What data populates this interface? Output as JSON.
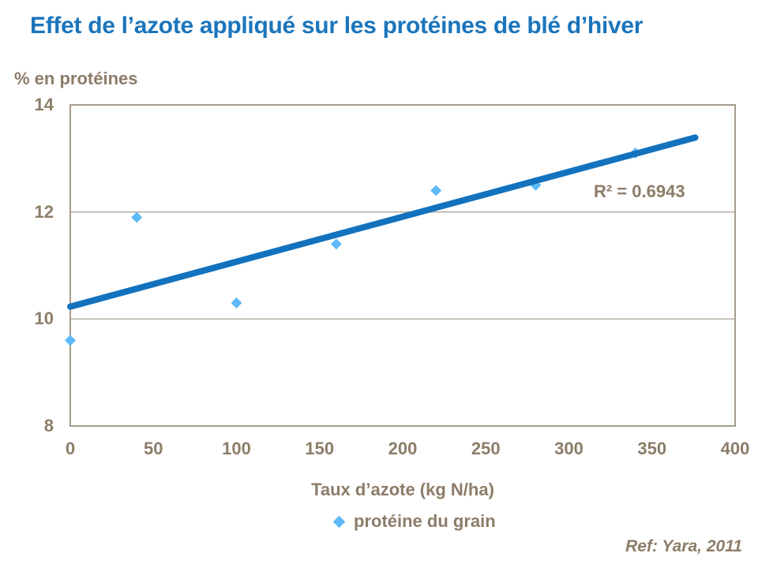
{
  "header": {
    "title": "Effet de l’azote appliqué sur les protéines de blé d’hiver"
  },
  "axes": {
    "y_title": "% en protéines",
    "x_title": "Taux d’azote (kg N/ha)"
  },
  "legend": {
    "label": "protéine du grain",
    "marker": "diamond"
  },
  "annotations": {
    "r2_label": "R² = 0.6943"
  },
  "footer": {
    "reference": "Ref: Yara, 2011"
  },
  "colors": {
    "title_blue": "#1B75BC",
    "trendline_blue": "#1272BE",
    "marker_blue": "#5DB9F7",
    "text_brown": "#8C7C68",
    "plot_border": "#A59C8E",
    "gridline": "#B2A99B",
    "background": "#FFFFFF"
  },
  "chart_data": {
    "type": "scatter",
    "title": "Effet de l’azote appliqué sur les protéines de blé d’hiver",
    "xlabel": "Taux d’azote (kg N/ha)",
    "ylabel": "% en protéines",
    "xlim": [
      0,
      400
    ],
    "ylim": [
      8,
      14
    ],
    "x_ticks": [
      0,
      50,
      100,
      150,
      200,
      250,
      300,
      350,
      400
    ],
    "y_ticks": [
      14,
      12,
      10,
      8
    ],
    "y_gridlines": [
      12,
      10
    ],
    "grid": "horizontal",
    "legend_position": "bottom",
    "series": [
      {
        "name": "protéine du grain",
        "marker": "diamond",
        "points": [
          [
            0,
            9.6
          ],
          [
            40,
            11.9
          ],
          [
            100,
            10.3
          ],
          [
            160,
            11.4
          ],
          [
            220,
            12.4
          ],
          [
            280,
            12.5
          ],
          [
            340,
            13.1
          ]
        ]
      }
    ],
    "trendline": {
      "type": "linear",
      "x_start": 0,
      "y_start": 10.23,
      "x_end": 376,
      "y_end": 13.39,
      "r_squared": 0.6943
    }
  }
}
